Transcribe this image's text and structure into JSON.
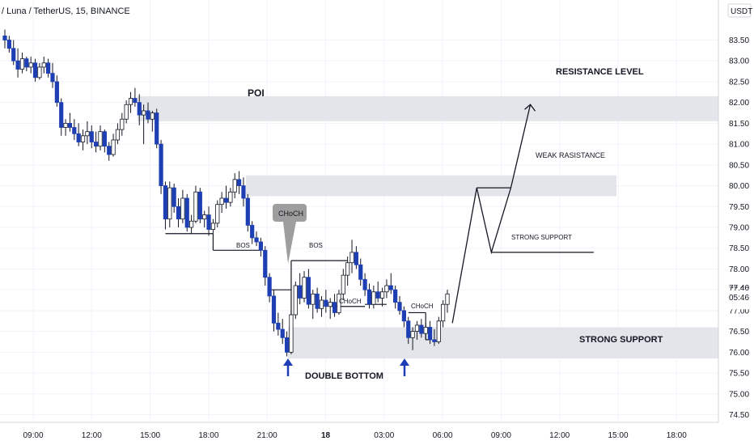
{
  "header": {
    "title": "/ Luna / TetherUS, 15, BINANCE"
  },
  "axis": {
    "currency": "USDT",
    "last_price": "77.40",
    "countdown": "05:46"
  },
  "annotations": {
    "poi": "POI",
    "resistance_level": "RESISTANCE LEVEL",
    "weak_resistance": "WEAK RASISTANCE",
    "strong_support_small": "STRONG SUPPORT",
    "strong_support_big": "STRONG SUPPORT",
    "double_bottom": "DOUBLE BOTTOM",
    "choch_bubble": "CHoCH",
    "choch_1": "CHoCH",
    "choch_2": "CHoCH",
    "bos_1": "BOS",
    "bos_2": "BOS"
  },
  "colors": {
    "bull": "#ffffff",
    "bear": "#1e3fb4",
    "wick": "#131722",
    "zone": "#e3e5ea",
    "grid": "#f0f3fa",
    "arrow_blue": "#1e3fb4",
    "bubble": "#9e9e9e"
  },
  "chart_data": {
    "type": "candlestick",
    "title": "/ Luna / TetherUS, 15, BINANCE",
    "ylabel": "USDT",
    "ylim": [
      74.2,
      83.8
    ],
    "y_ticks": [
      "74.50",
      "75.00",
      "75.50",
      "76.00",
      "76.50",
      "77.00",
      "77.50",
      "78.00",
      "78.50",
      "79.00",
      "79.50",
      "80.00",
      "80.50",
      "81.00",
      "81.50",
      "82.00",
      "82.50",
      "83.00",
      "83.50"
    ],
    "x_ticks": [
      "09:00",
      "12:00",
      "15:00",
      "18:00",
      "21:00",
      "18",
      "03:00",
      "06:00",
      "09:00",
      "12:00",
      "15:00",
      "18:00"
    ],
    "zones": [
      {
        "label": "POI",
        "low": 81.55,
        "high": 82.15
      },
      {
        "label": "WEAK RASISTANCE",
        "low": 79.75,
        "high": 80.25
      },
      {
        "label": "STRONG SUPPORT",
        "low": 75.85,
        "high": 76.6
      }
    ],
    "projection_path": [
      {
        "time": "06:30",
        "price": 76.7
      },
      {
        "time": "07:45",
        "price": 79.95
      },
      {
        "time": "08:30",
        "price": 78.4
      },
      {
        "time": "09:30",
        "price": 79.95
      },
      {
        "time": "10:30",
        "price": 81.95
      }
    ],
    "candles": [
      {
        "o": 83.6,
        "h": 83.75,
        "l": 83.3,
        "c": 83.5
      },
      {
        "o": 83.5,
        "h": 83.6,
        "l": 83.2,
        "c": 83.3
      },
      {
        "o": 83.3,
        "h": 83.5,
        "l": 82.9,
        "c": 83.0
      },
      {
        "o": 83.0,
        "h": 83.3,
        "l": 82.6,
        "c": 82.8
      },
      {
        "o": 82.8,
        "h": 83.2,
        "l": 82.7,
        "c": 83.05
      },
      {
        "o": 83.05,
        "h": 83.1,
        "l": 82.75,
        "c": 82.85
      },
      {
        "o": 82.85,
        "h": 83.1,
        "l": 82.7,
        "c": 82.95
      },
      {
        "o": 82.95,
        "h": 83.05,
        "l": 82.5,
        "c": 82.6
      },
      {
        "o": 82.6,
        "h": 82.95,
        "l": 82.55,
        "c": 82.85
      },
      {
        "o": 82.85,
        "h": 83.1,
        "l": 82.7,
        "c": 82.95
      },
      {
        "o": 82.95,
        "h": 83.05,
        "l": 82.6,
        "c": 82.7
      },
      {
        "o": 82.7,
        "h": 82.95,
        "l": 82.35,
        "c": 82.5
      },
      {
        "o": 82.5,
        "h": 82.65,
        "l": 81.9,
        "c": 82.0
      },
      {
        "o": 82.0,
        "h": 82.1,
        "l": 81.2,
        "c": 81.4
      },
      {
        "o": 81.4,
        "h": 81.6,
        "l": 81.2,
        "c": 81.5
      },
      {
        "o": 81.5,
        "h": 81.75,
        "l": 81.3,
        "c": 81.4
      },
      {
        "o": 81.4,
        "h": 81.6,
        "l": 81.1,
        "c": 81.25
      },
      {
        "o": 81.25,
        "h": 81.5,
        "l": 80.95,
        "c": 81.05
      },
      {
        "o": 81.05,
        "h": 81.35,
        "l": 80.85,
        "c": 81.2
      },
      {
        "o": 81.2,
        "h": 81.55,
        "l": 81.0,
        "c": 81.3
      },
      {
        "o": 81.3,
        "h": 81.45,
        "l": 80.9,
        "c": 81.05
      },
      {
        "o": 81.05,
        "h": 81.3,
        "l": 80.8,
        "c": 80.95
      },
      {
        "o": 80.95,
        "h": 81.45,
        "l": 80.85,
        "c": 81.3
      },
      {
        "o": 81.3,
        "h": 81.35,
        "l": 80.8,
        "c": 80.95
      },
      {
        "o": 80.95,
        "h": 81.05,
        "l": 80.6,
        "c": 80.75
      },
      {
        "o": 80.75,
        "h": 81.25,
        "l": 80.7,
        "c": 81.1
      },
      {
        "o": 81.1,
        "h": 81.5,
        "l": 81.0,
        "c": 81.35
      },
      {
        "o": 81.35,
        "h": 81.75,
        "l": 81.2,
        "c": 81.6
      },
      {
        "o": 81.6,
        "h": 82.05,
        "l": 81.5,
        "c": 81.95
      },
      {
        "o": 81.95,
        "h": 82.25,
        "l": 81.75,
        "c": 82.1
      },
      {
        "o": 82.1,
        "h": 82.35,
        "l": 81.9,
        "c": 82.0
      },
      {
        "o": 82.0,
        "h": 82.2,
        "l": 81.45,
        "c": 81.7
      },
      {
        "o": 81.7,
        "h": 81.95,
        "l": 81.0,
        "c": 81.8
      },
      {
        "o": 81.8,
        "h": 82.0,
        "l": 81.5,
        "c": 81.6
      },
      {
        "o": 81.6,
        "h": 81.8,
        "l": 81.3,
        "c": 81.75
      },
      {
        "o": 81.75,
        "h": 81.85,
        "l": 80.9,
        "c": 81.0
      },
      {
        "o": 81.0,
        "h": 81.1,
        "l": 79.8,
        "c": 80.0
      },
      {
        "o": 80.0,
        "h": 80.1,
        "l": 78.95,
        "c": 79.2
      },
      {
        "o": 79.2,
        "h": 80.1,
        "l": 79.0,
        "c": 79.95
      },
      {
        "o": 79.95,
        "h": 80.05,
        "l": 79.35,
        "c": 79.5
      },
      {
        "o": 79.5,
        "h": 79.7,
        "l": 79.0,
        "c": 79.2
      },
      {
        "o": 79.2,
        "h": 79.9,
        "l": 79.1,
        "c": 79.7
      },
      {
        "o": 79.7,
        "h": 79.8,
        "l": 78.9,
        "c": 79.0
      },
      {
        "o": 79.0,
        "h": 79.3,
        "l": 78.85,
        "c": 79.15
      },
      {
        "o": 79.15,
        "h": 80.0,
        "l": 79.1,
        "c": 79.85
      },
      {
        "o": 79.85,
        "h": 79.95,
        "l": 79.1,
        "c": 79.2
      },
      {
        "o": 79.2,
        "h": 79.4,
        "l": 79.0,
        "c": 79.3
      },
      {
        "o": 79.3,
        "h": 79.5,
        "l": 78.8,
        "c": 78.95
      },
      {
        "o": 78.95,
        "h": 79.2,
        "l": 78.85,
        "c": 79.1
      },
      {
        "o": 79.1,
        "h": 79.65,
        "l": 79.0,
        "c": 79.55
      },
      {
        "o": 79.55,
        "h": 79.85,
        "l": 79.35,
        "c": 79.7
      },
      {
        "o": 79.7,
        "h": 80.0,
        "l": 79.45,
        "c": 79.6
      },
      {
        "o": 79.6,
        "h": 79.95,
        "l": 79.5,
        "c": 79.85
      },
      {
        "o": 79.85,
        "h": 80.3,
        "l": 79.7,
        "c": 80.15
      },
      {
        "o": 80.15,
        "h": 80.35,
        "l": 79.8,
        "c": 80.0
      },
      {
        "o": 80.0,
        "h": 80.2,
        "l": 79.5,
        "c": 79.7
      },
      {
        "o": 79.7,
        "h": 79.8,
        "l": 78.9,
        "c": 79.05
      },
      {
        "o": 79.05,
        "h": 79.15,
        "l": 78.6,
        "c": 78.75
      },
      {
        "o": 78.75,
        "h": 78.9,
        "l": 78.55,
        "c": 78.65
      },
      {
        "o": 78.65,
        "h": 78.75,
        "l": 78.3,
        "c": 78.45
      },
      {
        "o": 78.45,
        "h": 78.55,
        "l": 77.6,
        "c": 77.8
      },
      {
        "o": 77.8,
        "h": 77.9,
        "l": 77.2,
        "c": 77.35
      },
      {
        "o": 77.35,
        "h": 77.5,
        "l": 76.5,
        "c": 76.7
      },
      {
        "o": 76.7,
        "h": 76.95,
        "l": 76.4,
        "c": 76.55
      },
      {
        "o": 76.55,
        "h": 76.8,
        "l": 76.2,
        "c": 76.35
      },
      {
        "o": 76.35,
        "h": 76.5,
        "l": 75.9,
        "c": 76.0
      },
      {
        "o": 76.0,
        "h": 77.0,
        "l": 75.95,
        "c": 76.9
      },
      {
        "o": 76.9,
        "h": 77.7,
        "l": 76.8,
        "c": 77.6
      },
      {
        "o": 77.6,
        "h": 77.9,
        "l": 77.15,
        "c": 77.3
      },
      {
        "o": 77.3,
        "h": 77.95,
        "l": 77.2,
        "c": 77.8
      },
      {
        "o": 77.8,
        "h": 78.0,
        "l": 77.05,
        "c": 77.15
      },
      {
        "o": 77.15,
        "h": 77.5,
        "l": 76.8,
        "c": 77.4
      },
      {
        "o": 77.4,
        "h": 77.55,
        "l": 76.95,
        "c": 77.05
      },
      {
        "o": 77.05,
        "h": 77.35,
        "l": 76.85,
        "c": 77.25
      },
      {
        "o": 77.25,
        "h": 77.5,
        "l": 76.95,
        "c": 77.1
      },
      {
        "o": 77.1,
        "h": 77.3,
        "l": 76.8,
        "c": 77.2
      },
      {
        "o": 77.2,
        "h": 77.4,
        "l": 76.85,
        "c": 76.95
      },
      {
        "o": 76.95,
        "h": 77.5,
        "l": 76.9,
        "c": 77.4
      },
      {
        "o": 77.4,
        "h": 78.0,
        "l": 77.25,
        "c": 77.85
      },
      {
        "o": 77.85,
        "h": 78.3,
        "l": 77.6,
        "c": 78.15
      },
      {
        "o": 78.15,
        "h": 78.7,
        "l": 77.9,
        "c": 78.4
      },
      {
        "o": 78.4,
        "h": 78.55,
        "l": 78.0,
        "c": 78.1
      },
      {
        "o": 78.1,
        "h": 78.25,
        "l": 77.6,
        "c": 77.75
      },
      {
        "o": 77.75,
        "h": 77.9,
        "l": 77.35,
        "c": 77.5
      },
      {
        "o": 77.5,
        "h": 77.65,
        "l": 77.05,
        "c": 77.15
      },
      {
        "o": 77.15,
        "h": 77.6,
        "l": 77.05,
        "c": 77.45
      },
      {
        "o": 77.45,
        "h": 77.7,
        "l": 77.2,
        "c": 77.3
      },
      {
        "o": 77.3,
        "h": 77.55,
        "l": 77.1,
        "c": 77.45
      },
      {
        "o": 77.45,
        "h": 77.75,
        "l": 77.3,
        "c": 77.6
      },
      {
        "o": 77.6,
        "h": 77.9,
        "l": 77.4,
        "c": 77.5
      },
      {
        "o": 77.5,
        "h": 77.6,
        "l": 77.05,
        "c": 77.2
      },
      {
        "o": 77.2,
        "h": 77.35,
        "l": 76.9,
        "c": 77.0
      },
      {
        "o": 77.0,
        "h": 77.1,
        "l": 76.6,
        "c": 76.75
      },
      {
        "o": 76.75,
        "h": 76.85,
        "l": 76.2,
        "c": 76.35
      },
      {
        "o": 76.35,
        "h": 76.6,
        "l": 76.05,
        "c": 76.5
      },
      {
        "o": 76.5,
        "h": 76.75,
        "l": 76.3,
        "c": 76.65
      },
      {
        "o": 76.65,
        "h": 76.8,
        "l": 76.35,
        "c": 76.45
      },
      {
        "o": 76.45,
        "h": 76.7,
        "l": 76.3,
        "c": 76.6
      },
      {
        "o": 76.6,
        "h": 76.75,
        "l": 76.2,
        "c": 76.3
      },
      {
        "o": 76.3,
        "h": 76.55,
        "l": 76.15,
        "c": 76.25
      },
      {
        "o": 76.25,
        "h": 76.85,
        "l": 76.2,
        "c": 76.75
      },
      {
        "o": 76.75,
        "h": 77.25,
        "l": 76.6,
        "c": 77.15
      },
      {
        "o": 77.15,
        "h": 77.5,
        "l": 76.95,
        "c": 77.4
      }
    ]
  }
}
